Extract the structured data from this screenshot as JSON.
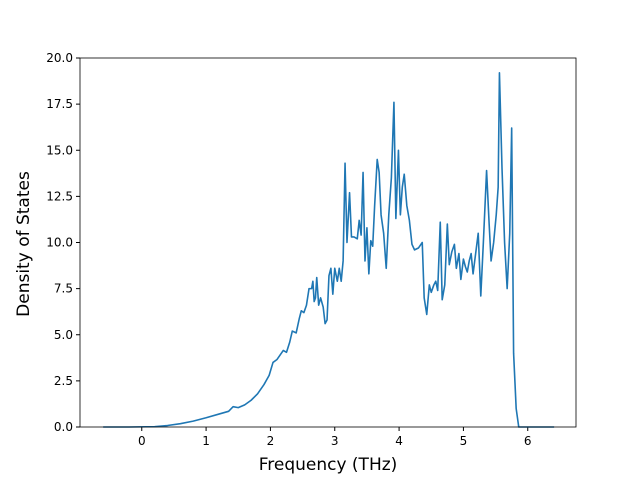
{
  "chart_data": {
    "type": "line",
    "xlabel": "Frequency (THz)",
    "ylabel": "Density of States",
    "xlim": [
      -0.96,
      6.75
    ],
    "ylim": [
      0,
      20
    ],
    "xticks": [
      0,
      1,
      2,
      3,
      4,
      5,
      6
    ],
    "yticks": [
      {
        "value": 0,
        "label": "0.0"
      },
      {
        "value": 2.5,
        "label": "2.5"
      },
      {
        "value": 5,
        "label": "5.0"
      },
      {
        "value": 7.5,
        "label": "7.5"
      },
      {
        "value": 10,
        "label": "10.0"
      },
      {
        "value": 12.5,
        "label": "12.5"
      },
      {
        "value": 15,
        "label": "15.0"
      },
      {
        "value": 17.5,
        "label": "17.5"
      },
      {
        "value": 20,
        "label": "20.0"
      }
    ],
    "color": "#1f77b4",
    "x": [
      -0.6,
      -0.2,
      0.2,
      0.4,
      0.6,
      0.8,
      1.0,
      1.2,
      1.35,
      1.42,
      1.5,
      1.6,
      1.7,
      1.8,
      1.9,
      1.98,
      2.04,
      2.1,
      2.15,
      2.2,
      2.25,
      2.3,
      2.34,
      2.4,
      2.45,
      2.48,
      2.52,
      2.56,
      2.6,
      2.64,
      2.66,
      2.68,
      2.7,
      2.72,
      2.75,
      2.78,
      2.82,
      2.85,
      2.88,
      2.91,
      2.94,
      2.97,
      3.0,
      3.04,
      3.07,
      3.1,
      3.13,
      3.16,
      3.19,
      3.23,
      3.26,
      3.3,
      3.35,
      3.38,
      3.41,
      3.44,
      3.47,
      3.5,
      3.53,
      3.56,
      3.59,
      3.62,
      3.66,
      3.69,
      3.72,
      3.76,
      3.8,
      3.84,
      3.88,
      3.92,
      3.95,
      3.99,
      4.02,
      4.05,
      4.08,
      4.12,
      4.16,
      4.2,
      4.24,
      4.3,
      4.36,
      4.39,
      4.43,
      4.47,
      4.5,
      4.54,
      4.57,
      4.6,
      4.64,
      4.67,
      4.71,
      4.75,
      4.78,
      4.82,
      4.86,
      4.89,
      4.93,
      4.96,
      5.0,
      5.03,
      5.06,
      5.09,
      5.12,
      5.15,
      5.19,
      5.23,
      5.27,
      5.31,
      5.36,
      5.4,
      5.43,
      5.47,
      5.51,
      5.54,
      5.56,
      5.6,
      5.64,
      5.68,
      5.72,
      5.75,
      5.78,
      5.82,
      5.86,
      6.41
    ],
    "values": [
      0,
      0,
      0.02,
      0.08,
      0.18,
      0.32,
      0.5,
      0.7,
      0.85,
      1.1,
      1.05,
      1.2,
      1.45,
      1.8,
      2.3,
      2.8,
      3.5,
      3.65,
      3.9,
      4.15,
      4.05,
      4.6,
      5.2,
      5.1,
      5.9,
      6.3,
      6.2,
      6.6,
      7.5,
      7.5,
      7.9,
      6.8,
      7.0,
      8.1,
      6.6,
      7.0,
      6.5,
      5.6,
      5.8,
      8.2,
      8.6,
      7.2,
      8.6,
      7.9,
      8.6,
      7.9,
      9.0,
      14.3,
      10.0,
      12.7,
      10.3,
      10.3,
      10.2,
      11.2,
      10.4,
      13.8,
      9.0,
      10.8,
      8.3,
      10.1,
      9.8,
      12.0,
      14.5,
      13.8,
      11.5,
      10.5,
      8.6,
      11.5,
      13.5,
      17.6,
      11.3,
      15.0,
      11.5,
      13.0,
      13.7,
      12.0,
      11.2,
      9.9,
      9.6,
      9.7,
      10.0,
      7.0,
      6.1,
      7.7,
      7.3,
      7.7,
      7.9,
      7.4,
      11.1,
      6.9,
      7.7,
      11.0,
      8.8,
      9.5,
      9.9,
      8.6,
      9.4,
      8.0,
      9.1,
      8.7,
      8.4,
      9.0,
      9.4,
      8.3,
      9.4,
      10.5,
      7.1,
      10.0,
      13.9,
      11.0,
      9.0,
      10.0,
      11.5,
      13.0,
      19.2,
      14.0,
      10.0,
      7.5,
      10.5,
      16.2,
      4.0,
      1.0,
      0,
      0
    ]
  }
}
